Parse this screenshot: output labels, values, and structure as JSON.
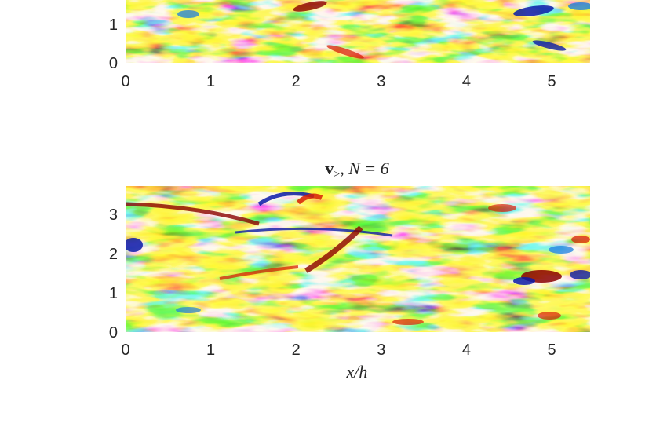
{
  "chart_data": [
    {
      "type": "heatmap",
      "title": "",
      "xlabel": "",
      "ylabel": "",
      "x_ticks": [
        "0",
        "1",
        "2",
        "3",
        "4",
        "5"
      ],
      "y_ticks": [
        "0",
        "1"
      ],
      "xlim": [
        0,
        5.45
      ],
      "ylim": [
        0,
        3.75
      ],
      "visible_ylim": [
        0,
        1.6
      ],
      "colormap": "jet",
      "note_visible": "panel clipped at top of image"
    },
    {
      "type": "heatmap",
      "title": "v>, N = 6",
      "xlabel": "x/h",
      "ylabel": "",
      "x_ticks": [
        "0",
        "1",
        "2",
        "3",
        "4",
        "5"
      ],
      "y_ticks": [
        "0",
        "1",
        "2",
        "3"
      ],
      "xlim": [
        0,
        5.45
      ],
      "ylim": [
        0,
        3.75
      ],
      "colormap": "jet"
    }
  ],
  "labels": {
    "title_bold": "v",
    "title_sub": ">",
    "title_rest": ", N = 6",
    "xlabel": "x/h"
  },
  "colors": {
    "deep_blue": "#0a1aa8",
    "blue": "#1f7ee0",
    "cyan": "#3fe6d6",
    "yellow": "#f5f520",
    "orange": "#ff9a10",
    "red": "#d82008",
    "dark_red": "#8a0000"
  }
}
